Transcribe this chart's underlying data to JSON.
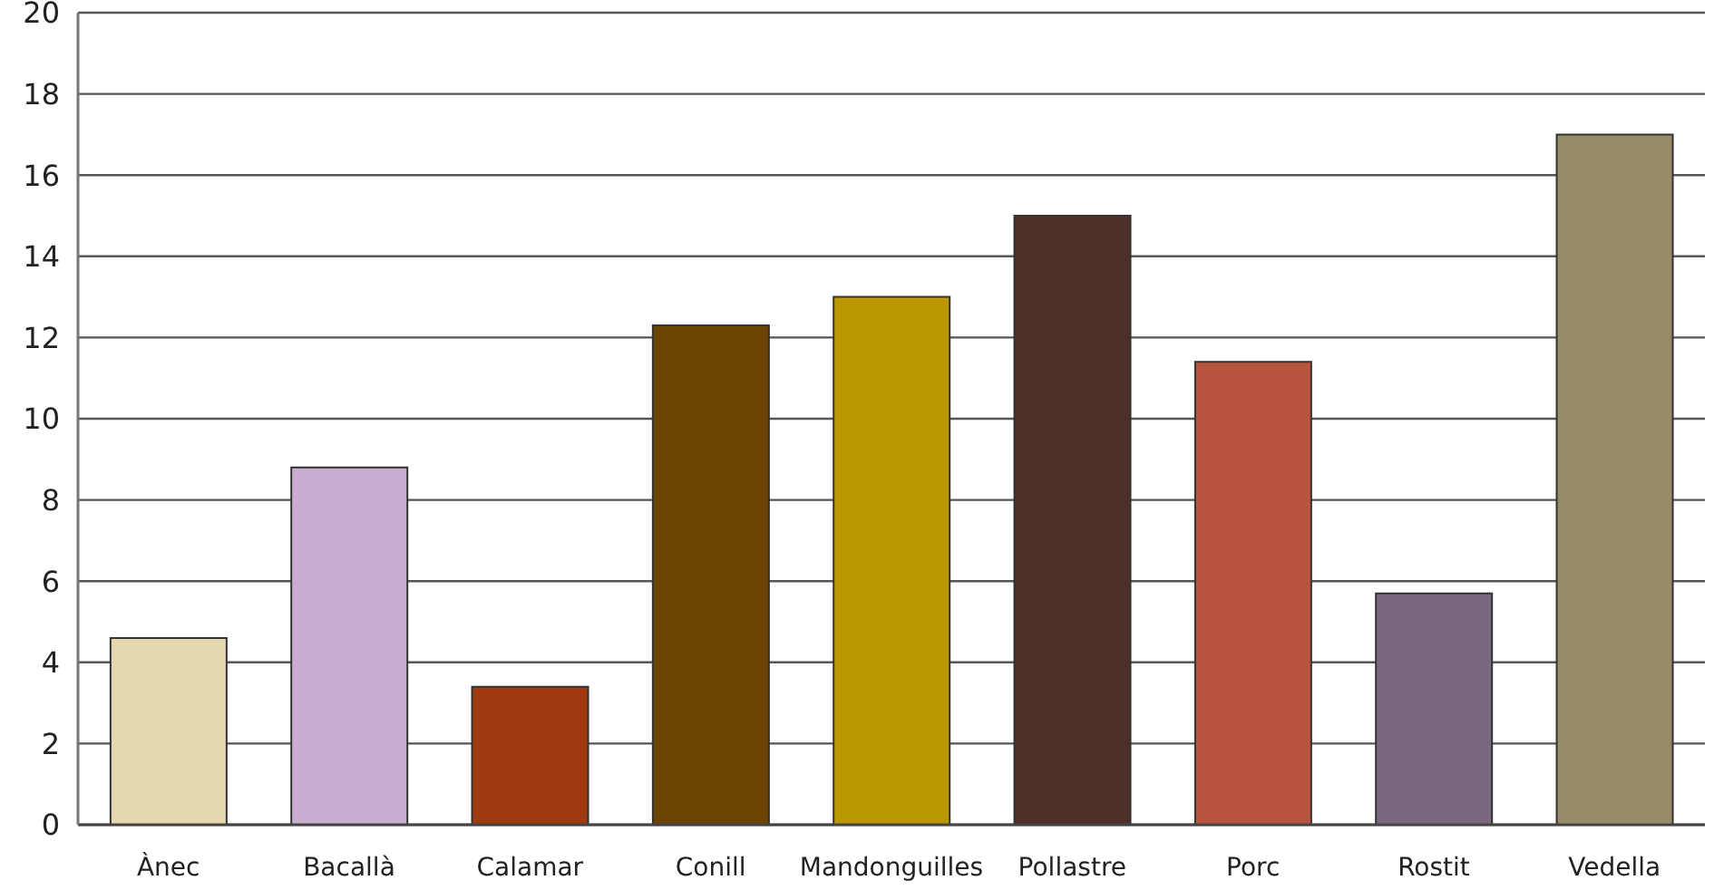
{
  "chart_data": {
    "type": "bar",
    "categories": [
      "Ànec",
      "Bacallà",
      "Calamar",
      "Conill",
      "Mandonguilles",
      "Pollastre",
      "Porc",
      "Rostit",
      "Vedella"
    ],
    "values": [
      4.6,
      8.8,
      3.4,
      12.3,
      13,
      15,
      11.4,
      5.7,
      17
    ],
    "colors": [
      "#e5d8b1",
      "#cbadd2",
      "#a03a10",
      "#6b4400",
      "#bc9704",
      "#4e3029",
      "#b9553e",
      "#78697f",
      "#968a67"
    ],
    "ylim": [
      0,
      20
    ],
    "yticks": [
      0,
      2,
      4,
      6,
      8,
      10,
      12,
      14,
      16,
      18,
      20
    ],
    "grid": "y"
  }
}
